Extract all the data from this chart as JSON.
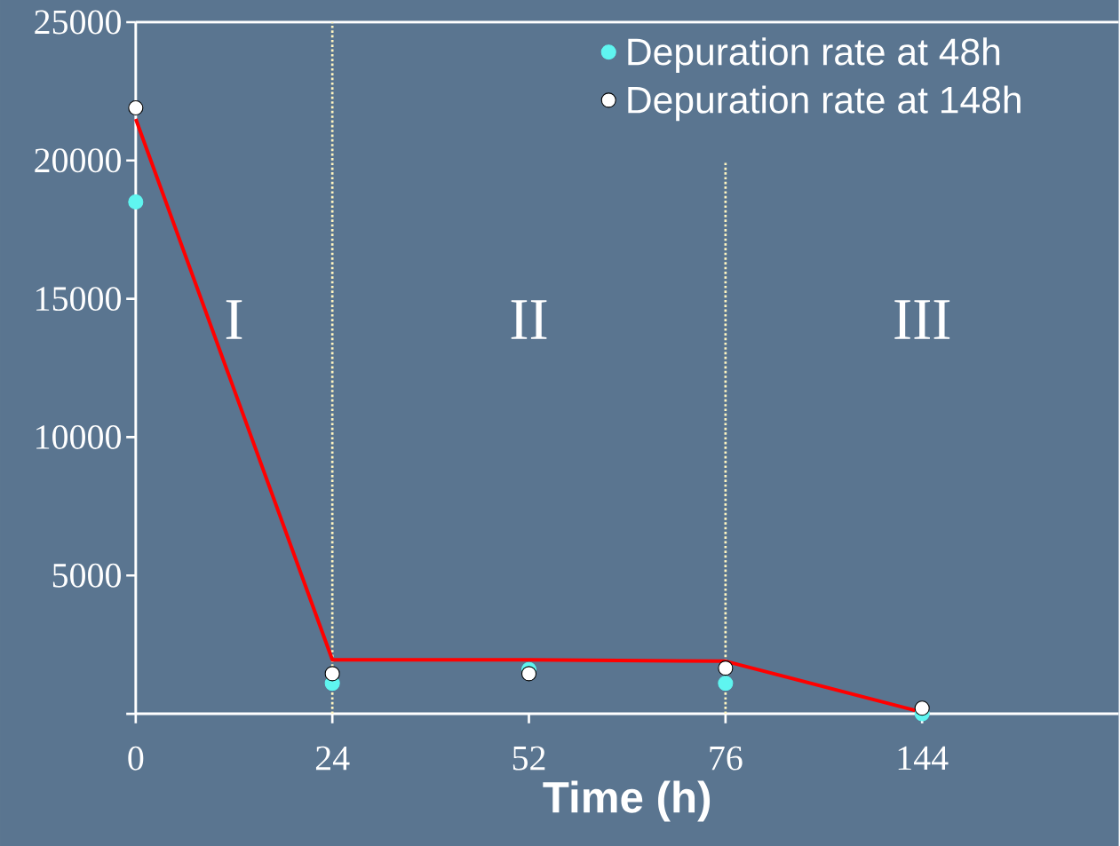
{
  "chart_data": {
    "type": "scatter",
    "xlabel": "Time (h)",
    "categories": [
      "0",
      "24",
      "52",
      "76",
      "144"
    ],
    "series": [
      {
        "name": "Depuration rate at 48h",
        "marker": "circle",
        "color": "#5ff5f0",
        "values": [
          18500,
          1100,
          1600,
          1100,
          0
        ]
      },
      {
        "name": "Depuration rate at 148h",
        "marker": "circle",
        "color": "#ffffff",
        "values": [
          21900,
          1450,
          1450,
          1650,
          200
        ]
      },
      {
        "type": "line",
        "marker": "none",
        "color": "#ff0000",
        "values": [
          21500,
          1950,
          1950,
          1900,
          60
        ]
      }
    ],
    "ylim": [
      0,
      25000
    ],
    "yticks": [
      {
        "value": 0,
        "label": null
      },
      5000,
      10000,
      15000,
      20000,
      25000
    ],
    "ref_lines": [
      {
        "axis": "x",
        "value": "24",
        "color": "#fff5c0",
        "line_style": "dotted"
      },
      {
        "axis": "x",
        "value": "76",
        "color": "#fff5c0",
        "line_style": "dotted"
      }
    ],
    "annotations": [
      "I",
      "II",
      "III"
    ],
    "legend": "top right",
    "grid": false
  }
}
